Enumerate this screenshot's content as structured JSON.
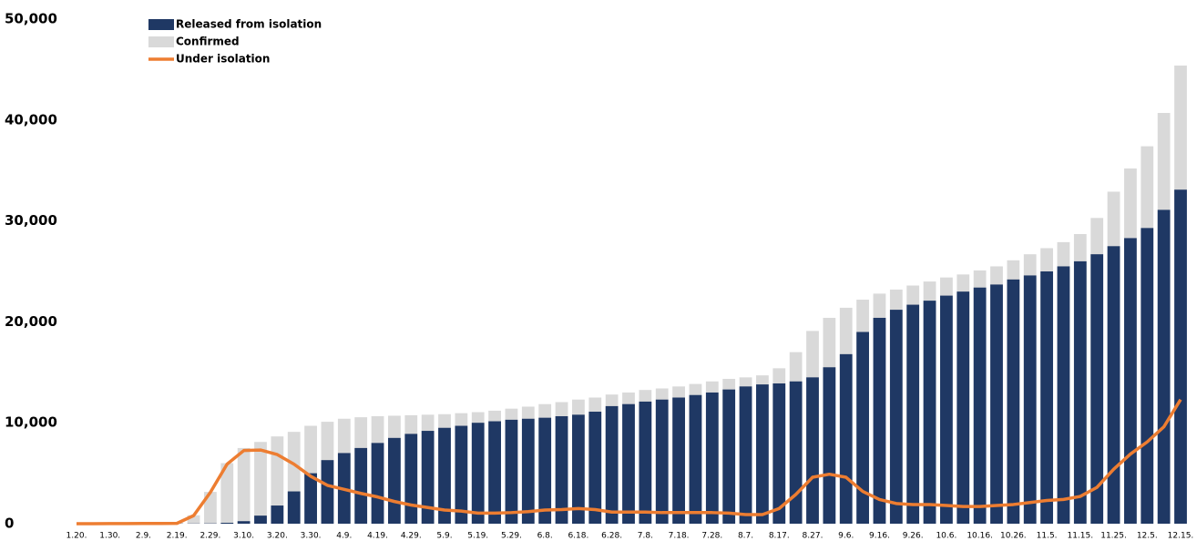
{
  "chart_data": {
    "type": "bar_line",
    "categories": [
      "1.20.",
      null,
      "1.30.",
      null,
      "2.9.",
      null,
      "2.19.",
      null,
      "2.29.",
      null,
      "3.10.",
      null,
      "3.20.",
      null,
      "3.30.",
      null,
      "4.9.",
      null,
      "4.19.",
      null,
      "4.29.",
      null,
      "5.9.",
      null,
      "5.19.",
      null,
      "5.29.",
      null,
      "6.8.",
      null,
      "6.18.",
      null,
      "6.28.",
      null,
      "7.8.",
      null,
      "7.18.",
      null,
      "7.28.",
      null,
      "8.7.",
      null,
      "8.17.",
      null,
      "8.27.",
      null,
      "9.6.",
      null,
      "9.16.",
      null,
      "9.26.",
      null,
      "10.6.",
      null,
      "10.16.",
      null,
      "10.26.",
      null,
      "11.5.",
      null,
      "11.15.",
      null,
      "11.25.",
      null,
      "12.5.",
      null,
      "12.15."
    ],
    "series": [
      {
        "name": "Confirmed",
        "color": "#d9d9d9",
        "kind": "bar",
        "values": [
          1,
          2,
          11,
          16,
          27,
          28,
          51,
          833,
          3150,
          6000,
          7500,
          8100,
          8650,
          9100,
          9700,
          10100,
          10400,
          10550,
          10650,
          10700,
          10750,
          10800,
          10850,
          10950,
          11050,
          11200,
          11400,
          11600,
          11850,
          12050,
          12300,
          12500,
          12800,
          13000,
          13250,
          13400,
          13600,
          13850,
          14100,
          14350,
          14500,
          14700,
          15400,
          17000,
          19100,
          20400,
          21400,
          22200,
          22800,
          23200,
          23600,
          24000,
          24400,
          24700,
          25100,
          25500,
          26100,
          26700,
          27300,
          27900,
          28700,
          30300,
          32900,
          35200,
          37400,
          40700,
          45400
        ]
      },
      {
        "name": "Released from isolation",
        "color": "#1f3864",
        "kind": "bar",
        "values": [
          0,
          0,
          0,
          0,
          3,
          9,
          16,
          18,
          28,
          90,
          250,
          800,
          1800,
          3200,
          5000,
          6300,
          7000,
          7500,
          8000,
          8500,
          8900,
          9200,
          9500,
          9700,
          10000,
          10150,
          10300,
          10400,
          10500,
          10650,
          10800,
          11100,
          11650,
          11850,
          12100,
          12300,
          12500,
          12750,
          13000,
          13300,
          13600,
          13800,
          13900,
          14100,
          14500,
          15500,
          16800,
          19000,
          20400,
          21200,
          21700,
          22100,
          22600,
          23000,
          23400,
          23700,
          24200,
          24600,
          25000,
          25500,
          26000,
          26700,
          27500,
          28300,
          29300,
          31100,
          33100
        ]
      },
      {
        "name": "Under isolation",
        "color": "#ed7d31",
        "kind": "line",
        "values": [
          1,
          2,
          11,
          16,
          24,
          19,
          35,
          800,
          3100,
          5900,
          7250,
          7300,
          6850,
          5900,
          4700,
          3800,
          3400,
          3000,
          2650,
          2200,
          1850,
          1600,
          1350,
          1250,
          1050,
          1050,
          1100,
          1200,
          1350,
          1400,
          1500,
          1400,
          1150,
          1150,
          1150,
          1100,
          1100,
          1100,
          1100,
          1050,
          900,
          900,
          1500,
          2900,
          4600,
          4900,
          4600,
          3200,
          2400,
          2000,
          1900,
          1900,
          1800,
          1700,
          1700,
          1800,
          1900,
          2100,
          2300,
          2400,
          2700,
          3600,
          5400,
          6900,
          8100,
          9600,
          12300
        ]
      }
    ],
    "ylim": [
      0,
      50000
    ],
    "yticks": [
      {
        "value": 0,
        "label": "0"
      },
      {
        "value": 10000,
        "label": "10,000"
      },
      {
        "value": 20000,
        "label": "20,000"
      },
      {
        "value": 30000,
        "label": "30,000"
      },
      {
        "value": 40000,
        "label": "40,000"
      },
      {
        "value": 50000,
        "label": "50,000"
      }
    ],
    "legend": "top-left",
    "grid": false
  }
}
